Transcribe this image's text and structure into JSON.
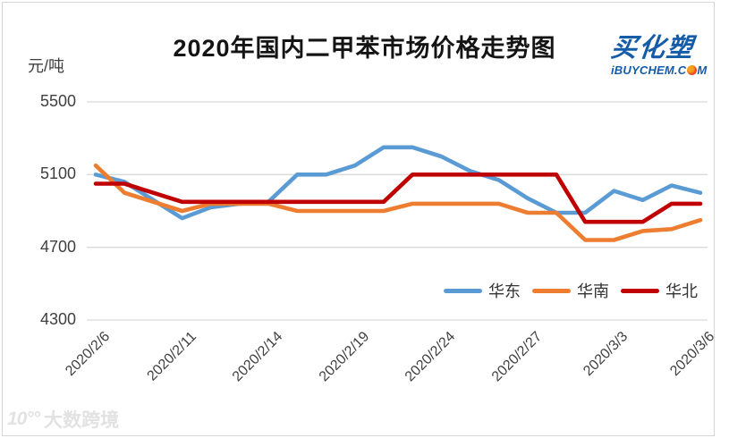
{
  "logo": {
    "name": "买化塑",
    "site_prefix": "iBUYCHEM.C",
    "site_suffix": "M",
    "brand_blue": "#155ca8",
    "globe_color": "#e2401f"
  },
  "page": {
    "watermark_mark": "10°°",
    "watermark_text": "大数跨境"
  },
  "chart_data": {
    "type": "line",
    "title": "2020年国内二甲苯市场价格走势图",
    "unit_label": "元/吨",
    "xlabel": "",
    "ylabel": "元/吨",
    "ylim": [
      4300,
      5500
    ],
    "yticks": [
      5500,
      5100,
      4700,
      4300
    ],
    "grid": true,
    "grid_color": "#d9d9d9",
    "legend_position": "bottom-right",
    "x": [
      "2020/2/6",
      "2020/2/7",
      "2020/2/10",
      "2020/2/11",
      "2020/2/12",
      "2020/2/13",
      "2020/2/14",
      "2020/2/17",
      "2020/2/18",
      "2020/2/19",
      "2020/2/20",
      "2020/2/21",
      "2020/2/24",
      "2020/2/25",
      "2020/2/26",
      "2020/2/27",
      "2020/2/28",
      "2020/3/2",
      "2020/3/3",
      "2020/3/4",
      "2020/3/5",
      "2020/3/6"
    ],
    "x_tick_labels": [
      "2020/2/6",
      "2020/2/11",
      "2020/2/14",
      "2020/2/19",
      "2020/2/24",
      "2020/2/27",
      "2020/3/3",
      "2020/3/6"
    ],
    "tick_indices": [
      0,
      3,
      6,
      9,
      12,
      15,
      18,
      21
    ],
    "series": [
      {
        "name": "华东",
        "color": "#5B9BD5",
        "values": [
          5100,
          5060,
          4960,
          4860,
          4920,
          4940,
          4950,
          5100,
          5100,
          5150,
          5250,
          5250,
          5200,
          5120,
          5070,
          4970,
          4890,
          4890,
          5010,
          4960,
          5040,
          5000
        ]
      },
      {
        "name": "华南",
        "color": "#ED7D31",
        "values": [
          5150,
          5000,
          4950,
          4900,
          4940,
          4940,
          4940,
          4900,
          4900,
          4900,
          4900,
          4940,
          4940,
          4940,
          4940,
          4890,
          4890,
          4740,
          4740,
          4790,
          4800,
          4850
        ]
      },
      {
        "name": "华北",
        "color": "#C00000",
        "values": [
          5050,
          5050,
          5000,
          4950,
          4950,
          4950,
          4950,
          4950,
          4950,
          4950,
          4950,
          5100,
          5100,
          5100,
          5100,
          5100,
          5100,
          4840,
          4840,
          4840,
          4940,
          4940
        ]
      }
    ]
  }
}
